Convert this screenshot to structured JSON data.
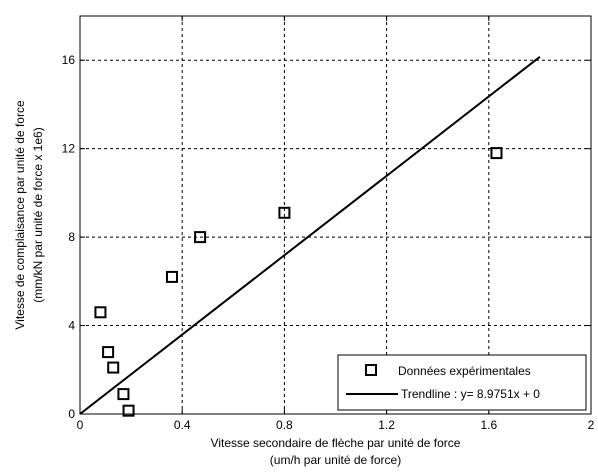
{
  "chart_data": {
    "type": "scatter",
    "xlabel_lines": [
      "Vitesse secondaire de flèche par unité de force",
      "(um/h par unité de force)"
    ],
    "ylabel_lines": [
      "Vitesse de complaisance par unité de force",
      "(mm/kN par unité de force x 1e6)"
    ],
    "xlim": [
      0,
      2
    ],
    "ylim": [
      0,
      18
    ],
    "xticks": [
      0,
      0.4,
      0.8,
      1.2,
      1.6,
      2
    ],
    "xtick_labels": [
      "0",
      "0.4",
      "0.8",
      "1.2",
      "1.6",
      "2"
    ],
    "yticks": [
      0,
      4,
      8,
      12,
      16
    ],
    "ytick_labels": [
      "0",
      "4",
      "8",
      "12",
      "16"
    ],
    "grid": true,
    "legend_position": "bottom-right",
    "series": [
      {
        "name": "Données expérimentales",
        "kind": "scatter",
        "marker": "square",
        "points": [
          {
            "x": 0.08,
            "y": 4.6
          },
          {
            "x": 0.11,
            "y": 2.8
          },
          {
            "x": 0.13,
            "y": 2.1
          },
          {
            "x": 0.17,
            "y": 0.9
          },
          {
            "x": 0.19,
            "y": 0.15
          },
          {
            "x": 0.36,
            "y": 6.2
          },
          {
            "x": 0.47,
            "y": 8.0
          },
          {
            "x": 0.8,
            "y": 9.1
          },
          {
            "x": 1.63,
            "y": 11.8
          }
        ]
      },
      {
        "name": "Trendline : y= 8.9751x + 0",
        "kind": "line",
        "slope": 8.9751,
        "intercept": 0,
        "x_range": [
          0,
          1.8
        ]
      }
    ]
  }
}
